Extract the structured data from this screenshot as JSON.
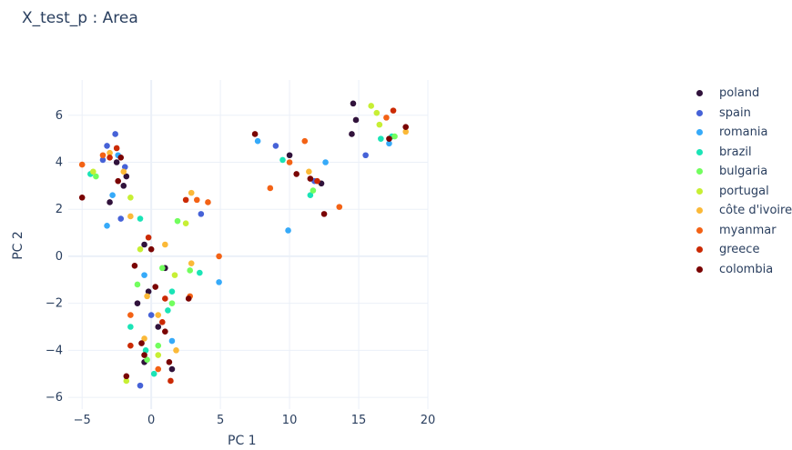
{
  "title": "X_test_p : Area",
  "chart_data": {
    "type": "scatter",
    "xlabel": "PC 1",
    "ylabel": "PC 2",
    "xlim": [
      -6,
      20
    ],
    "ylim": [
      -6.5,
      7.5
    ],
    "xticks": [
      -5,
      0,
      5,
      10,
      15,
      20
    ],
    "yticks": [
      -6,
      -4,
      -2,
      0,
      2,
      4,
      6
    ],
    "xtick_labels": [
      "−5",
      "0",
      "5",
      "10",
      "15",
      "20"
    ],
    "ytick_labels": [
      "−6",
      "−4",
      "−2",
      "0",
      "2",
      "4",
      "6"
    ],
    "grid": true,
    "legend_position": "right",
    "series": [
      {
        "name": "poland",
        "color": "#30123b",
        "points": [
          [
            14.6,
            6.5
          ],
          [
            14.8,
            5.8
          ],
          [
            14.5,
            5.2
          ],
          [
            10.0,
            4.3
          ],
          [
            12.3,
            3.1
          ],
          [
            -2.5,
            4.0
          ],
          [
            -1.8,
            3.4
          ],
          [
            -3.0,
            2.3
          ],
          [
            -0.5,
            0.5
          ],
          [
            1.0,
            -0.5
          ],
          [
            -1.0,
            -2.0
          ],
          [
            0.5,
            -3.0
          ],
          [
            -0.5,
            -4.5
          ],
          [
            1.5,
            -4.8
          ],
          [
            -2.0,
            3.0
          ],
          [
            -0.2,
            -1.5
          ]
        ]
      },
      {
        "name": "spain",
        "color": "#4662d7",
        "points": [
          [
            15.5,
            4.3
          ],
          [
            9.0,
            4.7
          ],
          [
            11.8,
            3.2
          ],
          [
            -2.6,
            5.2
          ],
          [
            -3.2,
            4.7
          ],
          [
            -1.9,
            3.8
          ],
          [
            -3.5,
            4.1
          ],
          [
            -0.8,
            -5.5
          ],
          [
            3.6,
            1.8
          ],
          [
            -2.2,
            1.6
          ],
          [
            0.0,
            -2.5
          ]
        ]
      },
      {
        "name": "romania",
        "color": "#36aaf9",
        "points": [
          [
            7.7,
            4.9
          ],
          [
            12.6,
            4.0
          ],
          [
            17.2,
            4.8
          ],
          [
            9.9,
            1.1
          ],
          [
            4.9,
            -1.1
          ],
          [
            -2.8,
            2.6
          ],
          [
            -3.2,
            1.3
          ],
          [
            -0.5,
            -0.8
          ],
          [
            1.5,
            -3.6
          ],
          [
            -2.4,
            4.3
          ]
        ]
      },
      {
        "name": "brazil",
        "color": "#1ae4b6",
        "points": [
          [
            9.5,
            4.1
          ],
          [
            16.6,
            5.0
          ],
          [
            17.4,
            5.1
          ],
          [
            11.5,
            2.6
          ],
          [
            -4.4,
            3.5
          ],
          [
            -0.8,
            1.6
          ],
          [
            3.5,
            -0.7
          ],
          [
            1.2,
            -2.3
          ],
          [
            -0.4,
            -4.0
          ],
          [
            1.5,
            -1.5
          ],
          [
            -1.5,
            -3.0
          ],
          [
            0.2,
            -5.0
          ]
        ]
      },
      {
        "name": "bulgaria",
        "color": "#72fe5e",
        "points": [
          [
            17.6,
            5.1
          ],
          [
            11.7,
            2.8
          ],
          [
            -4.0,
            3.4
          ],
          [
            1.9,
            1.5
          ],
          [
            2.8,
            -0.6
          ],
          [
            -0.3,
            -4.4
          ],
          [
            0.8,
            -0.5
          ],
          [
            -1.0,
            -1.2
          ],
          [
            1.5,
            -2.0
          ],
          [
            0.5,
            -3.8
          ]
        ]
      },
      {
        "name": "portugal",
        "color": "#c7ef34",
        "points": [
          [
            15.9,
            6.4
          ],
          [
            16.3,
            6.1
          ],
          [
            16.5,
            5.6
          ],
          [
            2.5,
            1.4
          ],
          [
            -1.8,
            -5.3
          ],
          [
            -0.8,
            0.3
          ],
          [
            1.7,
            -0.8
          ],
          [
            0.5,
            -4.2
          ],
          [
            -1.5,
            2.5
          ],
          [
            -4.2,
            3.6
          ]
        ]
      },
      {
        "name": "côte d'ivoire",
        "color": "#fbb938",
        "points": [
          [
            18.4,
            5.3
          ],
          [
            11.4,
            3.6
          ],
          [
            2.9,
            2.7
          ],
          [
            -1.5,
            1.7
          ],
          [
            -0.3,
            -1.7
          ],
          [
            2.9,
            -0.3
          ],
          [
            -0.5,
            -3.5
          ],
          [
            1.8,
            -4.0
          ],
          [
            -3.0,
            4.4
          ],
          [
            0.5,
            -2.5
          ],
          [
            -2.0,
            3.6
          ],
          [
            1.0,
            0.5
          ]
        ]
      },
      {
        "name": "myanmar",
        "color": "#f36215",
        "points": [
          [
            17.0,
            5.9
          ],
          [
            11.1,
            4.9
          ],
          [
            10.0,
            4.0
          ],
          [
            8.6,
            2.9
          ],
          [
            13.6,
            2.1
          ],
          [
            3.3,
            2.4
          ],
          [
            4.1,
            2.3
          ],
          [
            4.9,
            0.0
          ],
          [
            -5.0,
            3.9
          ],
          [
            -3.5,
            4.3
          ],
          [
            -1.5,
            -2.5
          ],
          [
            0.5,
            -4.8
          ],
          [
            2.8,
            -1.7
          ]
        ]
      },
      {
        "name": "greece",
        "color": "#cb2a04",
        "points": [
          [
            17.5,
            6.2
          ],
          [
            12.0,
            3.2
          ],
          [
            1.4,
            -5.3
          ],
          [
            2.5,
            2.4
          ],
          [
            -2.5,
            4.6
          ],
          [
            -0.2,
            0.8
          ],
          [
            1.0,
            -1.8
          ],
          [
            -1.5,
            -3.8
          ],
          [
            0.8,
            -2.8
          ],
          [
            -3.0,
            4.2
          ]
        ]
      },
      {
        "name": "colombia",
        "color": "#7a0403",
        "points": [
          [
            7.5,
            5.2
          ],
          [
            10.5,
            3.5
          ],
          [
            12.5,
            1.8
          ],
          [
            18.4,
            5.5
          ],
          [
            17.2,
            5.0
          ],
          [
            11.5,
            3.3
          ],
          [
            -5.0,
            2.5
          ],
          [
            -1.8,
            -5.1
          ],
          [
            2.7,
            -1.8
          ],
          [
            -2.4,
            3.2
          ],
          [
            -1.2,
            -0.4
          ],
          [
            0.3,
            -1.3
          ],
          [
            -0.7,
            -3.7
          ],
          [
            1.3,
            -4.5
          ],
          [
            0.0,
            0.3
          ],
          [
            -2.2,
            4.2
          ],
          [
            -0.5,
            -4.2
          ],
          [
            1.0,
            -3.2
          ]
        ]
      }
    ]
  }
}
